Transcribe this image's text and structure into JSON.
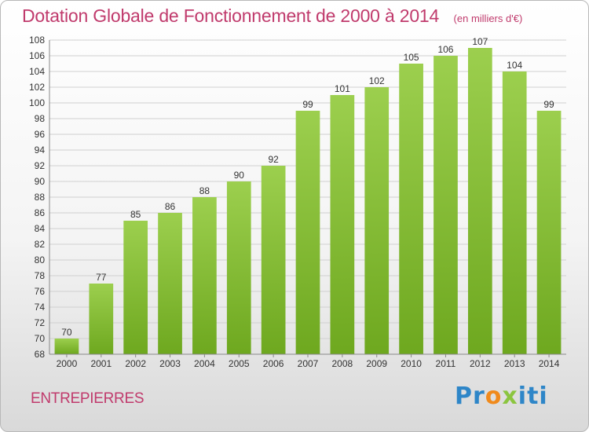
{
  "chart_data": {
    "type": "bar",
    "title": "Dotation Globale de Fonctionnement de 2000 à 2014",
    "subtitle": "(en milliers d'€)",
    "categories": [
      "2000",
      "2001",
      "2002",
      "2003",
      "2004",
      "2005",
      "2006",
      "2007",
      "2008",
      "2009",
      "2010",
      "2011",
      "2012",
      "2013",
      "2014"
    ],
    "values": [
      70,
      77,
      85,
      86,
      88,
      90,
      92,
      99,
      101,
      102,
      105,
      106,
      107,
      104,
      99
    ],
    "xlabel": "",
    "ylabel": "",
    "ylim": [
      68,
      108
    ],
    "ytick_step": 2,
    "grid": true,
    "bar_color_top": "#9ccf4e",
    "bar_color_bottom": "#6ea81f"
  },
  "footer": {
    "commune": "ENTREPIERRES",
    "brand": {
      "p1": "Pr",
      "p2": "o",
      "p3": "x",
      "p4": "iti"
    }
  },
  "colors": {
    "title": "#c03a6c",
    "grid": "#d0d0d0"
  }
}
